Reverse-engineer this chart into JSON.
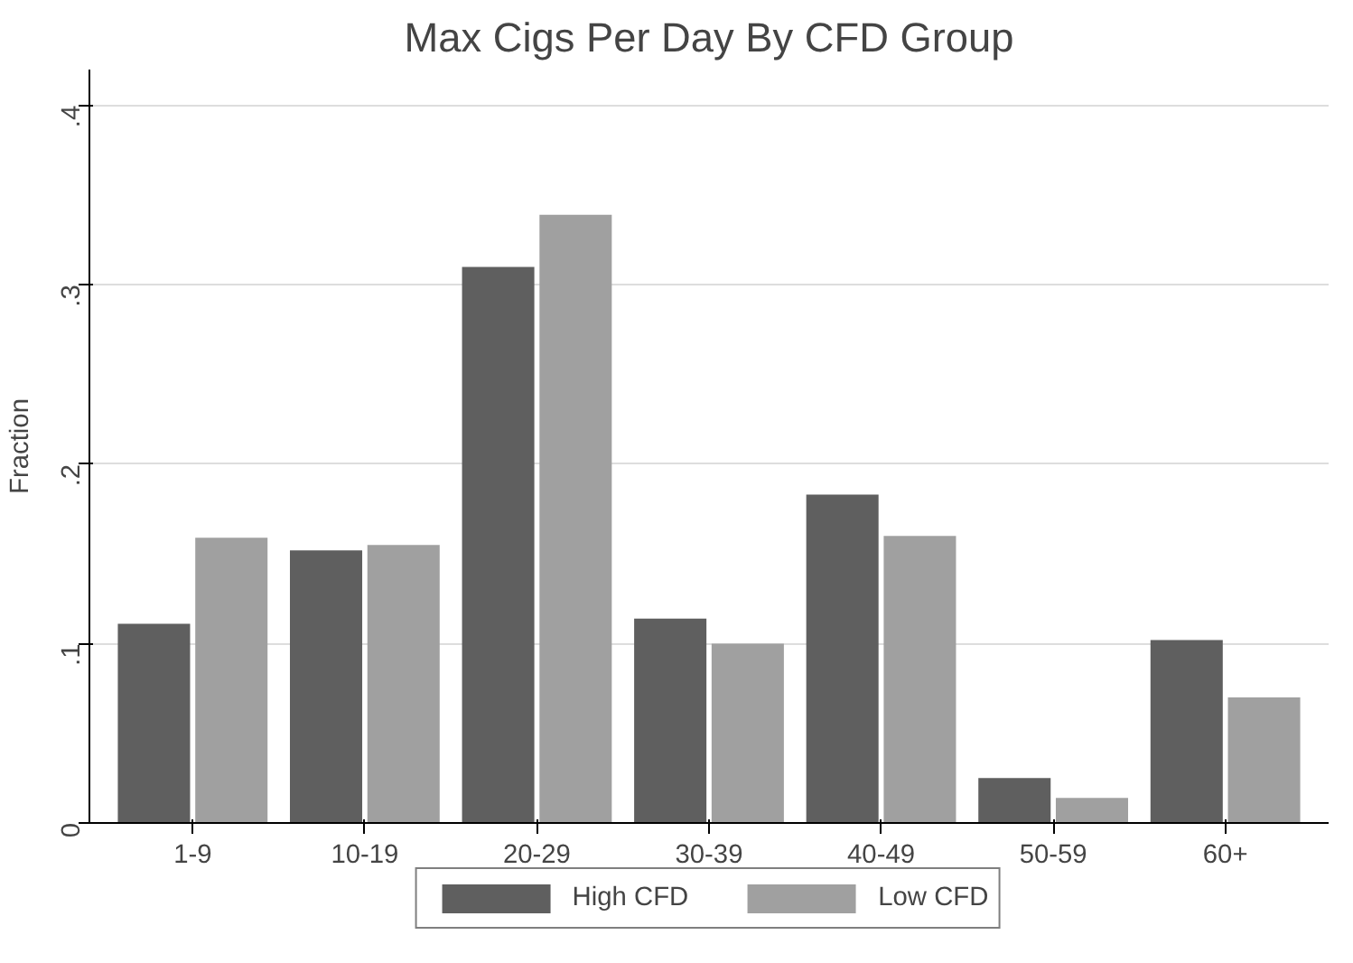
{
  "chart_data": {
    "type": "bar",
    "title": "Max Cigs Per Day By CFD Group",
    "ylabel": "Fraction",
    "categories": [
      "1-9",
      "10-19",
      "20-29",
      "30-39",
      "40-49",
      "50-59",
      "60+"
    ],
    "series": [
      {
        "name": "High CFD",
        "color": "#5f5f5f",
        "values": [
          0.111,
          0.152,
          0.31,
          0.114,
          0.183,
          0.025,
          0.102
        ]
      },
      {
        "name": "Low CFD",
        "color": "#a0a0a0",
        "values": [
          0.159,
          0.155,
          0.339,
          0.1,
          0.16,
          0.014,
          0.07
        ]
      }
    ],
    "ylim": [
      0,
      0.42
    ],
    "yticks": [
      {
        "value": 0,
        "label": "0"
      },
      {
        "value": 0.1,
        "label": ".1"
      },
      {
        "value": 0.2,
        "label": ".2"
      },
      {
        "value": 0.3,
        "label": ".3"
      },
      {
        "value": 0.4,
        "label": ".4"
      }
    ],
    "grid": "y",
    "legend": "bottom"
  }
}
